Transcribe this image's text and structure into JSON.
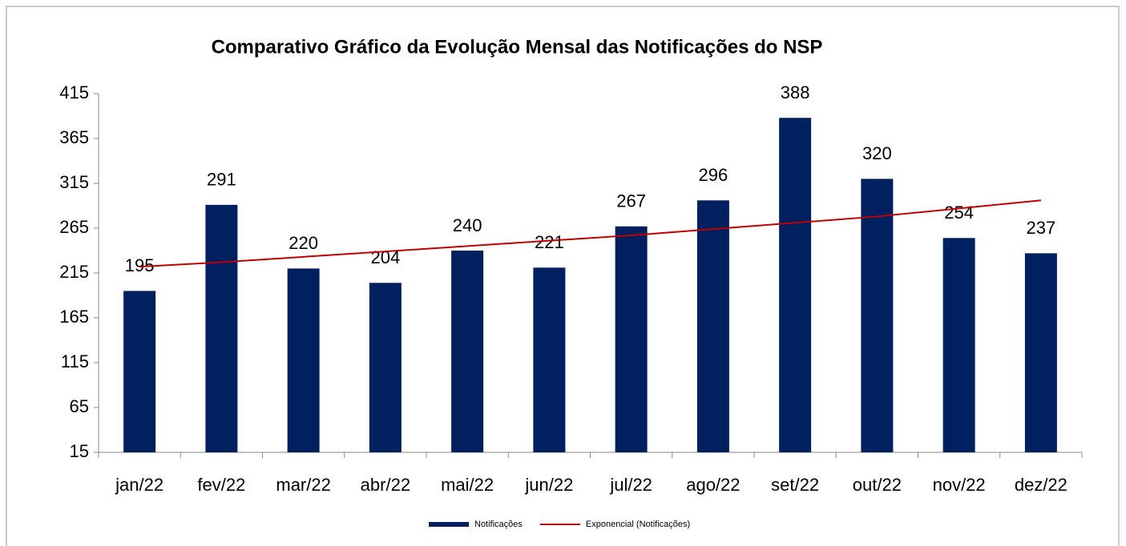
{
  "chart_data": {
    "type": "bar",
    "title": "Comparativo Gráfico da Evolução Mensal das Notificações do NSP",
    "categories": [
      "jan/22",
      "fev/22",
      "mar/22",
      "abr/22",
      "mai/22",
      "jun/22",
      "jul/22",
      "ago/22",
      "set/22",
      "out/22",
      "nov/22",
      "dez/22"
    ],
    "series": [
      {
        "name": "Notificações",
        "color": "#002060",
        "values": [
          195,
          291,
          220,
          204,
          240,
          221,
          267,
          296,
          388,
          320,
          254,
          237
        ]
      },
      {
        "name": "Exponencial (Notificações)",
        "color": "#c00000",
        "type": "line",
        "values": [
          222,
          227,
          233,
          239,
          245,
          251,
          257,
          264,
          271,
          278,
          287,
          296
        ]
      }
    ],
    "ylim": [
      15,
      415
    ],
    "yticks": [
      15,
      65,
      115,
      165,
      215,
      265,
      315,
      365,
      415
    ],
    "grid": false,
    "legend": "bottom"
  }
}
